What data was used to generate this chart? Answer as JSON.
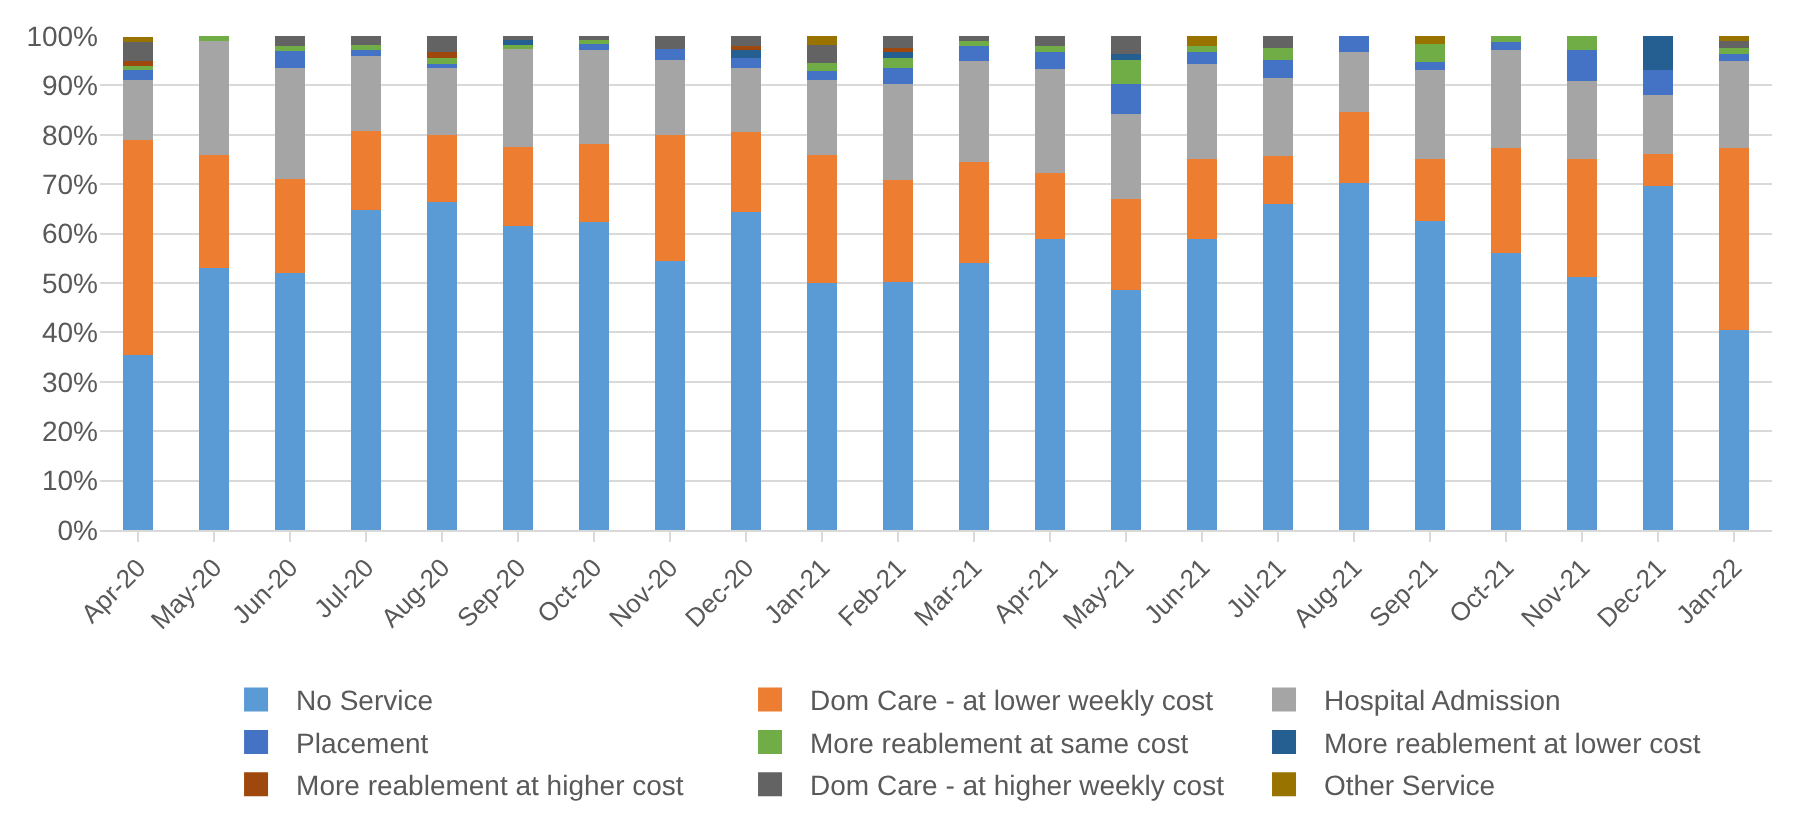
{
  "chart_data": {
    "type": "bar",
    "stacked": true,
    "grid": "y",
    "legend": "bottom",
    "categories": [
      "Apr-20",
      "May-20",
      "Jun-20",
      "Jul-20",
      "Aug-20",
      "Sep-20",
      "Oct-20",
      "Nov-20",
      "Dec-20",
      "Jan-21",
      "Feb-21",
      "Mar-21",
      "Apr-21",
      "May-21",
      "Jun-21",
      "Jul-21",
      "Aug-21",
      "Sep-21",
      "Oct-21",
      "Nov-21",
      "Dec-21",
      "Jan-22"
    ],
    "ylim": [
      0,
      100
    ],
    "yticks": [
      {
        "value": 0,
        "label": "0%"
      },
      {
        "value": 10,
        "label": "10%"
      },
      {
        "value": 20,
        "label": "20%"
      },
      {
        "value": 30,
        "label": "30%"
      },
      {
        "value": 40,
        "label": "40%"
      },
      {
        "value": 50,
        "label": "50%"
      },
      {
        "value": 60,
        "label": "60%"
      },
      {
        "value": 70,
        "label": "70%"
      },
      {
        "value": 80,
        "label": "80%"
      },
      {
        "value": 90,
        "label": "90%"
      },
      {
        "value": 100,
        "label": "100%"
      }
    ],
    "series": [
      {
        "name": "No Service",
        "color": "#5b9bd5",
        "values": [
          35.5,
          53,
          52,
          64.8,
          66.3,
          61.5,
          62.3,
          54.5,
          64.3,
          50,
          50.3,
          54,
          59,
          48.5,
          59,
          66,
          70.3,
          62.5,
          56,
          51.3,
          69.6,
          40.5
        ]
      },
      {
        "name": "Dom Care - at lower weekly cost",
        "color": "#ed7d31",
        "values": [
          43.5,
          23,
          19,
          15.9,
          13.7,
          16,
          15.9,
          25.5,
          16.2,
          26,
          20.6,
          20.4,
          13.2,
          18.6,
          16.2,
          9.8,
          14.3,
          12.7,
          21.3,
          23.9,
          6.6,
          36.8
        ]
      },
      {
        "name": "Hospital Admission",
        "color": "#a5a5a5",
        "values": [
          12,
          23,
          22.5,
          15.3,
          13.7,
          19.8,
          19,
          15.2,
          13,
          15,
          19.4,
          20.6,
          21.2,
          17.2,
          19.1,
          15.6,
          12.1,
          17.9,
          19.8,
          15.6,
          11.8,
          17.7
        ]
      },
      {
        "name": "Placement",
        "color": "#4472c4",
        "values": [
          2.2,
          0,
          3.5,
          1.5,
          0.6,
          0,
          1.5,
          2.1,
          2,
          2,
          3.3,
          3.1,
          3.4,
          6,
          2.4,
          3.7,
          3.3,
          1.7,
          1.7,
          6.3,
          5.2,
          1.4
        ]
      },
      {
        "name": "More reablement at same cost",
        "color": "#70ad47",
        "values": [
          1,
          1,
          1,
          0.7,
          1.6,
          0.9,
          0.5,
          0,
          0,
          1.5,
          2,
          0.8,
          1.2,
          5.2,
          1.3,
          2.5,
          0,
          3.5,
          1.2,
          2.9,
          0,
          1.1
        ]
      },
      {
        "name": "More reablement at lower cost",
        "color": "#255e91",
        "values": [
          null,
          0,
          0,
          0,
          0,
          1.1,
          0,
          0,
          1.7,
          0,
          1.2,
          0,
          0,
          0.8,
          0,
          0,
          0,
          0,
          0,
          0,
          6.8,
          0
        ]
      },
      {
        "name": "More reablement at higher cost",
        "color": "#9e480e",
        "values": [
          0.8,
          0,
          0,
          0,
          0.8,
          0,
          0,
          0,
          0.8,
          0,
          0.7,
          0,
          0,
          0,
          0,
          0,
          0,
          0,
          0,
          0,
          0,
          0
        ]
      },
      {
        "name": "Dom Care - at higher weekly cost",
        "color": "#636363",
        "values": [
          4.1,
          0,
          2,
          1.8,
          3.3,
          0.7,
          0.8,
          2.7,
          2,
          3.7,
          2.5,
          1.1,
          2,
          3.7,
          0,
          2.4,
          0,
          0,
          0,
          0,
          0,
          1.4
        ]
      },
      {
        "name": "Other Service",
        "color": "#997300",
        "values": [
          0.7,
          0,
          0,
          0,
          0,
          0,
          0,
          0,
          0,
          1.8,
          0,
          0,
          0,
          0,
          2,
          0,
          0,
          1.7,
          0,
          0,
          0,
          1.1
        ]
      }
    ]
  }
}
